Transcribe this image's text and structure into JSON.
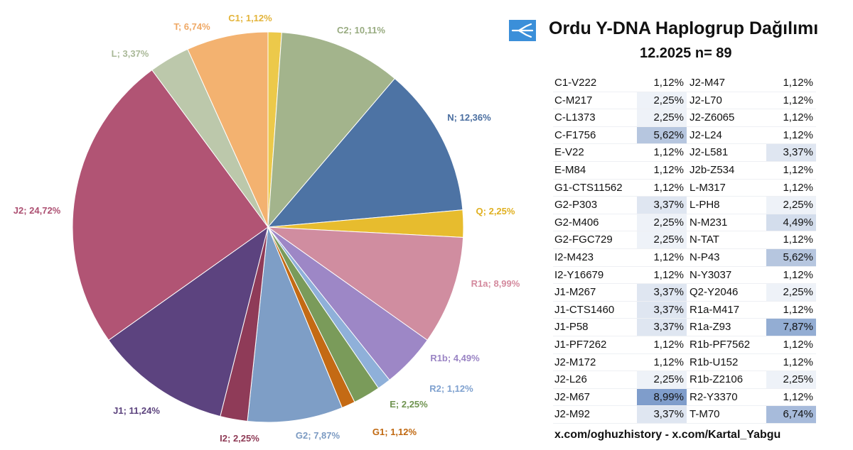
{
  "header": {
    "title": "Ordu Y-DNA Haplogrup Dağılımı",
    "subtitle": "12.2025 n= 89"
  },
  "footer": "x.com/oghuzhistory - x.com/Kartal_Yabgu",
  "chart_data": {
    "type": "pie",
    "slices": [
      {
        "name": "C1; 1,12%",
        "value": 1.12,
        "color": "#ecc94a",
        "label_color": "#e3b43a"
      },
      {
        "name": "C2; 10,11%",
        "value": 10.11,
        "color": "#a3b48c",
        "label_color": "#98ab80"
      },
      {
        "name": "N; 12,36%",
        "value": 12.36,
        "color": "#4d73a4",
        "label_color": "#4a6ea0"
      },
      {
        "name": "Q; 2,25%",
        "value": 2.25,
        "color": "#e7bc2e",
        "label_color": "#e0b020"
      },
      {
        "name": "R1a; 8,99%",
        "value": 8.99,
        "color": "#d08da0",
        "label_color": "#d48a9e"
      },
      {
        "name": "R1b; 4,49%",
        "value": 4.49,
        "color": "#9d87c6",
        "label_color": "#9a84c4"
      },
      {
        "name": "R2; 1,12%",
        "value": 1.12,
        "color": "#8fb0d9",
        "label_color": "#7fa1cf"
      },
      {
        "name": "E; 2,25%",
        "value": 2.25,
        "color": "#7a9b5a",
        "label_color": "#6f9350"
      },
      {
        "name": "G1; 1,12%",
        "value": 1.12,
        "color": "#c46a14",
        "label_color": "#c06810"
      },
      {
        "name": "G2; 7,87%",
        "value": 7.87,
        "color": "#7e9ec6",
        "label_color": "#7b9ac2"
      },
      {
        "name": "I2; 2,25%",
        "value": 2.25,
        "color": "#8f3b58",
        "label_color": "#8e3a55"
      },
      {
        "name": "J1; 11,24%",
        "value": 11.24,
        "color": "#5c437f",
        "label_color": "#5b427d"
      },
      {
        "name": "J2; 24,72%",
        "value": 24.72,
        "color": "#b15474",
        "label_color": "#ad5072"
      },
      {
        "name": "L; 3,37%",
        "value": 3.37,
        "color": "#bcc8ab",
        "label_color": "#a9b897"
      },
      {
        "name": "T; 6,74%",
        "value": 6.74,
        "color": "#f3b270",
        "label_color": "#efa865"
      }
    ]
  },
  "table": {
    "left": [
      {
        "name": "C1-V222",
        "value": "1,12%",
        "pct": 1.12
      },
      {
        "name": "C-M217",
        "value": "2,25%",
        "pct": 2.25
      },
      {
        "name": "C-L1373",
        "value": "2,25%",
        "pct": 2.25
      },
      {
        "name": "C-F1756",
        "value": "5,62%",
        "pct": 5.62
      },
      {
        "name": "E-V22",
        "value": "1,12%",
        "pct": 1.12
      },
      {
        "name": "E-M84",
        "value": "1,12%",
        "pct": 1.12
      },
      {
        "name": "G1-CTS11562",
        "value": "1,12%",
        "pct": 1.12
      },
      {
        "name": "G2-P303",
        "value": "3,37%",
        "pct": 3.37
      },
      {
        "name": "G2-M406",
        "value": "2,25%",
        "pct": 2.25
      },
      {
        "name": "G2-FGC729",
        "value": "2,25%",
        "pct": 2.25
      },
      {
        "name": "I2-M423",
        "value": "1,12%",
        "pct": 1.12
      },
      {
        "name": "I2-Y16679",
        "value": "1,12%",
        "pct": 1.12
      },
      {
        "name": "J1-M267",
        "value": "3,37%",
        "pct": 3.37
      },
      {
        "name": "J1-CTS1460",
        "value": "3,37%",
        "pct": 3.37
      },
      {
        "name": "J1-P58",
        "value": "3,37%",
        "pct": 3.37
      },
      {
        "name": "J1-PF7262",
        "value": "1,12%",
        "pct": 1.12
      },
      {
        "name": "J2-M172",
        "value": "1,12%",
        "pct": 1.12
      },
      {
        "name": "J2-L26",
        "value": "2,25%",
        "pct": 2.25
      },
      {
        "name": "J2-M67",
        "value": "8,99%",
        "pct": 8.99
      },
      {
        "name": "J2-M92",
        "value": "3,37%",
        "pct": 3.37
      }
    ],
    "right": [
      {
        "name": "J2-M47",
        "value": "1,12%",
        "pct": 1.12
      },
      {
        "name": "J2-L70",
        "value": "1,12%",
        "pct": 1.12
      },
      {
        "name": "J2-Z6065",
        "value": "1,12%",
        "pct": 1.12
      },
      {
        "name": "J2-L24",
        "value": "1,12%",
        "pct": 1.12
      },
      {
        "name": "J2-L581",
        "value": "3,37%",
        "pct": 3.37
      },
      {
        "name": "J2b-Z534",
        "value": "1,12%",
        "pct": 1.12
      },
      {
        "name": "L-M317",
        "value": "1,12%",
        "pct": 1.12
      },
      {
        "name": "L-PH8",
        "value": "2,25%",
        "pct": 2.25
      },
      {
        "name": "N-M231",
        "value": "4,49%",
        "pct": 4.49
      },
      {
        "name": "N-TAT",
        "value": "1,12%",
        "pct": 1.12
      },
      {
        "name": "N-P43",
        "value": "5,62%",
        "pct": 5.62
      },
      {
        "name": "N-Y3037",
        "value": "1,12%",
        "pct": 1.12
      },
      {
        "name": "Q2-Y2046",
        "value": "2,25%",
        "pct": 2.25
      },
      {
        "name": "R1a-M417",
        "value": "1,12%",
        "pct": 1.12
      },
      {
        "name": "R1a-Z93",
        "value": "7,87%",
        "pct": 7.87
      },
      {
        "name": "R1b-PF7562",
        "value": "1,12%",
        "pct": 1.12
      },
      {
        "name": "R1b-U152",
        "value": "1,12%",
        "pct": 1.12
      },
      {
        "name": "R1b-Z2106",
        "value": "2,25%",
        "pct": 2.25
      },
      {
        "name": "R2-Y3370",
        "value": "1,12%",
        "pct": 1.12
      },
      {
        "name": "T-M70",
        "value": "6,74%",
        "pct": 6.74
      }
    ]
  }
}
